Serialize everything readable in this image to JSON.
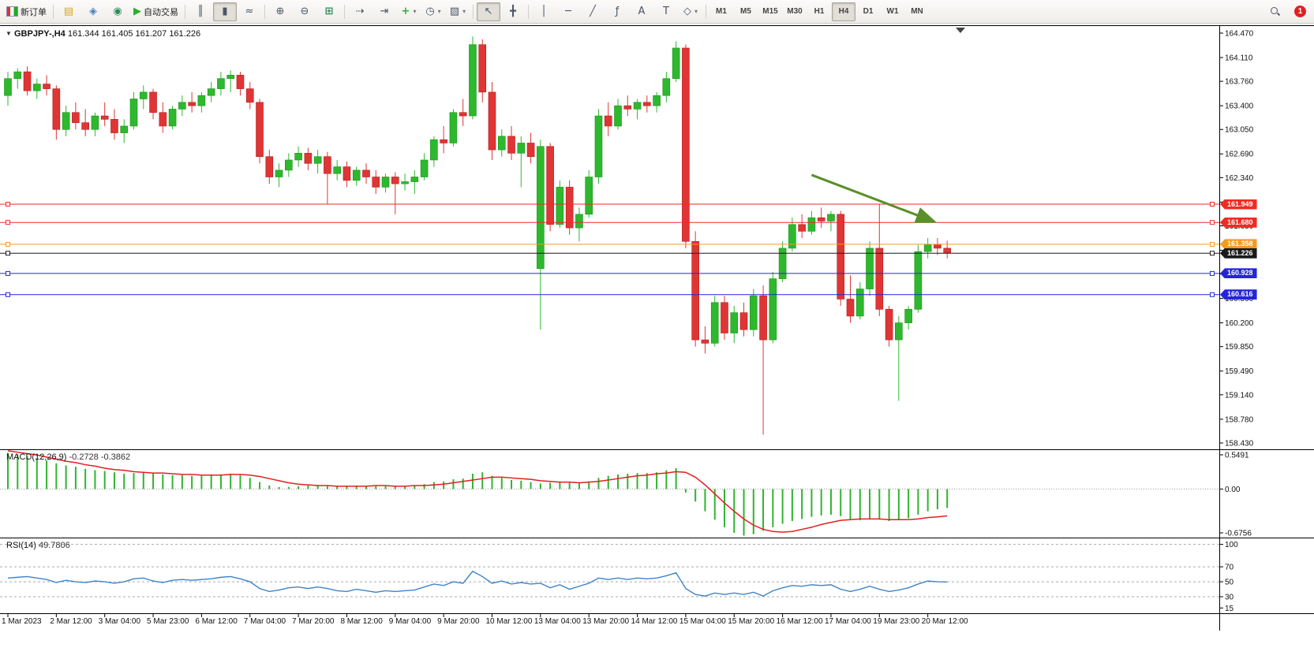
{
  "toolbar": {
    "notification_count": "1",
    "dropdown_glyph": "▾",
    "items": [
      {
        "name": "new-order-button",
        "label": "新订单",
        "icon": "new-order-icon"
      },
      {
        "sep": true
      },
      {
        "name": "market-watch-button",
        "glyph": "▤",
        "glyph_color": "#d9a520"
      },
      {
        "name": "navigator-button",
        "glyph": "◈",
        "glyph_color": "#4a7ebb"
      },
      {
        "name": "terminal-button",
        "glyph": "◉",
        "glyph_color": "#2e8b57"
      },
      {
        "name": "autotrading-button",
        "label": "自动交易",
        "glyph": "▶",
        "glyph_color": "#2eae2e"
      },
      {
        "sep": true
      },
      {
        "name": "bar-chart-button",
        "glyph": "║"
      },
      {
        "name": "candlestick-chart-button",
        "glyph": "▮",
        "active": true
      },
      {
        "name": "line-chart-button",
        "glyph": "≈"
      },
      {
        "sep": true
      },
      {
        "name": "zoom-in-button",
        "glyph": "⊕"
      },
      {
        "name": "zoom-out-button",
        "glyph": "⊖"
      },
      {
        "name": "tile-windows-button",
        "glyph": "⊞",
        "glyph_color": "#2e8b57"
      },
      {
        "sep": true
      },
      {
        "name": "auto-scroll-button",
        "glyph": "⇢"
      },
      {
        "name": "chart-shift-button",
        "glyph": "⇥"
      },
      {
        "name": "indicators-button",
        "glyph": "+",
        "glyph_color": "#2eae2e",
        "dropdown": true
      },
      {
        "name": "periods-button",
        "glyph": "◷",
        "dropdown": true
      },
      {
        "name": "templates-button",
        "glyph": "▨",
        "dropdown": true
      },
      {
        "sep": true
      },
      {
        "name": "cursor-button",
        "glyph": "↖",
        "active": true
      },
      {
        "name": "crosshair-button",
        "glyph": "╋"
      },
      {
        "sep": true
      },
      {
        "name": "vertical-line-button",
        "glyph": "│"
      },
      {
        "name": "horizontal-line-button",
        "glyph": "─"
      },
      {
        "name": "trendline-button",
        "glyph": "╱"
      },
      {
        "name": "fibonacci-button",
        "glyph": "ƒ"
      },
      {
        "name": "text-button",
        "glyph": "A"
      },
      {
        "name": "label-button",
        "glyph": "T"
      },
      {
        "name": "shapes-button",
        "glyph": "◇",
        "dropdown": true
      },
      {
        "sep": true
      },
      {
        "name": "tf-m1-button",
        "label": "M1",
        "tf": true
      },
      {
        "name": "tf-m5-button",
        "label": "M5",
        "tf": true
      },
      {
        "name": "tf-m15-button",
        "label": "M15",
        "tf": true
      },
      {
        "name": "tf-m30-button",
        "label": "M30",
        "tf": true
      },
      {
        "name": "tf-h1-button",
        "label": "H1",
        "tf": true
      },
      {
        "name": "tf-h4-button",
        "label": "H4",
        "tf": true,
        "active": true
      },
      {
        "name": "tf-d1-button",
        "label": "D1",
        "tf": true
      },
      {
        "name": "tf-w1-button",
        "label": "W1",
        "tf": true
      },
      {
        "name": "tf-mn-button",
        "label": "MN",
        "tf": true
      }
    ]
  },
  "chart": {
    "collapse_icon": "▼",
    "symbol_period": "GBPJPY-,H4",
    "ohlc": "161.344 161.405 161.207 161.226",
    "price_axis_ticks": [
      "164.470",
      "164.110",
      "163.760",
      "163.400",
      "163.050",
      "162.690",
      "162.340",
      "161.980",
      "161.630",
      "161.270",
      "160.920",
      "160.560",
      "160.200",
      "159.850",
      "159.490",
      "159.140",
      "158.780",
      "158.430"
    ],
    "time_axis_labels": [
      {
        "text": "1 Mar 2023",
        "bar": 0
      },
      {
        "text": "2 Mar 12:00",
        "bar": 5
      },
      {
        "text": "3 Mar 04:00",
        "bar": 10
      },
      {
        "text": "5 Mar 23:00",
        "bar": 15
      },
      {
        "text": "6 Mar 12:00",
        "bar": 20
      },
      {
        "text": "7 Mar 04:00",
        "bar": 25
      },
      {
        "text": "7 Mar 20:00",
        "bar": 30
      },
      {
        "text": "8 Mar 12:00",
        "bar": 35
      },
      {
        "text": "9 Mar 04:00",
        "bar": 40
      },
      {
        "text": "9 Mar 20:00",
        "bar": 45
      },
      {
        "text": "10 Mar 12:00",
        "bar": 50
      },
      {
        "text": "13 Mar 04:00",
        "bar": 55
      },
      {
        "text": "13 Mar 20:00",
        "bar": 60
      },
      {
        "text": "14 Mar 12:00",
        "bar": 65
      },
      {
        "text": "15 Mar 04:00",
        "bar": 70
      },
      {
        "text": "15 Mar 20:00",
        "bar": 75
      },
      {
        "text": "16 Mar 12:00",
        "bar": 80
      },
      {
        "text": "17 Mar 04:00",
        "bar": 85
      },
      {
        "text": "19 Mar 23:00",
        "bar": 90
      },
      {
        "text": "20 Mar 12:00",
        "bar": 95
      }
    ]
  },
  "macd": {
    "label": "MACD(12,26,9)",
    "values": "-0.2728 -0.3862",
    "axis": [
      "0.5491",
      "0.00",
      "-0.6756"
    ]
  },
  "rsi": {
    "label": "RSI(14)",
    "value": "49.7806",
    "axis": [
      "100",
      "70",
      "50",
      "30",
      "15"
    ],
    "levels": [
      100,
      70,
      50,
      30
    ]
  },
  "chart_data": {
    "type": "candlestick",
    "symbol": "GBPJPY",
    "timeframe": "H4",
    "price_range": [
      158.43,
      164.47
    ],
    "colors": {
      "bull": "#2eb82e",
      "bear": "#e03535",
      "macd_hist": "#30b430",
      "macd_signal": "#e02020",
      "rsi_line": "#3f84c9",
      "arrow": "#5a8f29"
    },
    "candles": [
      [
        163.55,
        163.9,
        163.4,
        163.8
      ],
      [
        163.8,
        163.95,
        163.65,
        163.9
      ],
      [
        163.9,
        163.98,
        163.55,
        163.62
      ],
      [
        163.62,
        163.8,
        163.5,
        163.72
      ],
      [
        163.72,
        163.85,
        163.55,
        163.65
      ],
      [
        163.65,
        163.7,
        162.9,
        163.05
      ],
      [
        163.05,
        163.4,
        162.95,
        163.3
      ],
      [
        163.3,
        163.45,
        163.05,
        163.15
      ],
      [
        163.15,
        163.35,
        162.95,
        163.05
      ],
      [
        163.05,
        163.3,
        162.95,
        163.25
      ],
      [
        163.25,
        163.45,
        163.1,
        163.2
      ],
      [
        163.2,
        163.35,
        162.9,
        163.0
      ],
      [
        163.0,
        163.2,
        162.85,
        163.1
      ],
      [
        163.1,
        163.6,
        163.05,
        163.5
      ],
      [
        163.5,
        163.7,
        163.35,
        163.6
      ],
      [
        163.6,
        163.65,
        163.2,
        163.3
      ],
      [
        163.3,
        163.45,
        163.0,
        163.1
      ],
      [
        163.1,
        163.4,
        163.05,
        163.35
      ],
      [
        163.35,
        163.55,
        163.25,
        163.45
      ],
      [
        163.45,
        163.6,
        163.3,
        163.4
      ],
      [
        163.4,
        163.6,
        163.3,
        163.55
      ],
      [
        163.55,
        163.75,
        163.45,
        163.65
      ],
      [
        163.65,
        163.9,
        163.55,
        163.8
      ],
      [
        163.8,
        163.92,
        163.6,
        163.85
      ],
      [
        163.85,
        163.9,
        163.55,
        163.65
      ],
      [
        163.65,
        163.75,
        163.35,
        163.45
      ],
      [
        163.45,
        163.5,
        162.55,
        162.65
      ],
      [
        162.65,
        162.75,
        162.25,
        162.35
      ],
      [
        162.35,
        162.55,
        162.2,
        162.45
      ],
      [
        162.45,
        162.7,
        162.35,
        162.6
      ],
      [
        162.6,
        162.8,
        162.5,
        162.7
      ],
      [
        162.7,
        162.78,
        162.45,
        162.55
      ],
      [
        162.55,
        162.75,
        162.4,
        162.65
      ],
      [
        162.65,
        162.72,
        161.95,
        162.4
      ],
      [
        162.4,
        162.6,
        162.3,
        162.5
      ],
      [
        162.5,
        162.58,
        162.2,
        162.3
      ],
      [
        162.3,
        162.5,
        162.22,
        162.45
      ],
      [
        162.45,
        162.55,
        162.25,
        162.35
      ],
      [
        162.35,
        162.45,
        162.1,
        162.2
      ],
      [
        162.2,
        162.4,
        162.12,
        162.35
      ],
      [
        162.35,
        162.42,
        161.8,
        162.25
      ],
      [
        162.25,
        162.4,
        162.15,
        162.28
      ],
      [
        162.28,
        162.45,
        162.1,
        162.35
      ],
      [
        162.35,
        162.7,
        162.3,
        162.6
      ],
      [
        162.6,
        162.95,
        162.5,
        162.9
      ],
      [
        162.9,
        163.1,
        162.7,
        162.85
      ],
      [
        162.85,
        163.35,
        162.8,
        163.3
      ],
      [
        163.3,
        163.5,
        163.1,
        163.25
      ],
      [
        163.25,
        164.42,
        163.2,
        164.3
      ],
      [
        164.3,
        164.38,
        163.45,
        163.6
      ],
      [
        163.6,
        163.75,
        162.6,
        162.75
      ],
      [
        162.75,
        163.05,
        162.65,
        162.95
      ],
      [
        162.95,
        163.1,
        162.6,
        162.7
      ],
      [
        162.7,
        162.95,
        162.2,
        162.85
      ],
      [
        162.85,
        163.0,
        162.55,
        162.65
      ],
      [
        161.0,
        162.9,
        160.1,
        162.8
      ],
      [
        162.8,
        162.85,
        161.55,
        161.65
      ],
      [
        161.65,
        162.3,
        161.6,
        162.2
      ],
      [
        162.2,
        162.3,
        161.5,
        161.6
      ],
      [
        161.6,
        161.9,
        161.4,
        161.8
      ],
      [
        161.8,
        162.45,
        161.75,
        162.35
      ],
      [
        162.35,
        163.35,
        162.25,
        163.25
      ],
      [
        163.25,
        163.45,
        162.95,
        163.1
      ],
      [
        163.1,
        163.5,
        163.05,
        163.4
      ],
      [
        163.4,
        163.55,
        163.25,
        163.35
      ],
      [
        163.35,
        163.5,
        163.2,
        163.45
      ],
      [
        163.45,
        163.55,
        163.3,
        163.4
      ],
      [
        163.4,
        163.6,
        163.3,
        163.55
      ],
      [
        163.55,
        163.9,
        163.45,
        163.8
      ],
      [
        163.8,
        164.35,
        163.75,
        164.25
      ],
      [
        164.25,
        164.3,
        161.3,
        161.4
      ],
      [
        161.4,
        161.55,
        159.85,
        159.95
      ],
      [
        159.95,
        160.15,
        159.75,
        159.9
      ],
      [
        159.9,
        160.6,
        159.85,
        160.5
      ],
      [
        160.5,
        160.6,
        159.95,
        160.05
      ],
      [
        160.05,
        160.45,
        159.9,
        160.35
      ],
      [
        160.35,
        160.5,
        160.0,
        160.1
      ],
      [
        160.1,
        160.7,
        160.0,
        160.6
      ],
      [
        160.6,
        160.75,
        158.55,
        159.95
      ],
      [
        159.95,
        160.95,
        159.9,
        160.85
      ],
      [
        160.85,
        161.4,
        160.8,
        161.3
      ],
      [
        161.3,
        161.75,
        161.25,
        161.65
      ],
      [
        161.65,
        161.8,
        161.45,
        161.55
      ],
      [
        161.55,
        161.85,
        161.5,
        161.75
      ],
      [
        161.75,
        161.9,
        161.6,
        161.7
      ],
      [
        161.7,
        161.85,
        161.55,
        161.8
      ],
      [
        161.8,
        161.85,
        160.45,
        160.55
      ],
      [
        160.55,
        160.9,
        160.2,
        160.3
      ],
      [
        160.3,
        160.8,
        160.25,
        160.7
      ],
      [
        160.7,
        161.4,
        160.6,
        161.3
      ],
      [
        161.3,
        161.95,
        160.3,
        160.4
      ],
      [
        160.4,
        160.45,
        159.85,
        159.95
      ],
      [
        159.95,
        160.3,
        159.05,
        160.2
      ],
      [
        160.2,
        160.45,
        160.1,
        160.4
      ],
      [
        160.4,
        161.35,
        160.35,
        161.25
      ],
      [
        161.25,
        161.45,
        161.15,
        161.35
      ],
      [
        161.35,
        161.45,
        161.2,
        161.3
      ],
      [
        161.3,
        161.41,
        161.15,
        161.23
      ]
    ],
    "hlines": [
      {
        "price": 161.949,
        "label": "161.949",
        "color": "#ef2b24"
      },
      {
        "price": 161.68,
        "label": "161.680",
        "color": "#ef2b24"
      },
      {
        "price": 161.358,
        "label": "161.358",
        "color": "#f59a21"
      },
      {
        "price": 161.226,
        "label": "161.226",
        "color": "#1a1a1a",
        "role": "bid"
      },
      {
        "price": 160.928,
        "label": "160.928",
        "color": "#2525d8"
      },
      {
        "price": 160.616,
        "label": "160.616",
        "color": "#2525d8"
      }
    ],
    "annotations": [
      {
        "type": "arrow",
        "from_bar": 83,
        "from_price": 162.38,
        "to_bar": 95.5,
        "to_price": 161.7,
        "color": "#5a8f29"
      }
    ],
    "indicators": {
      "macd": {
        "params": "12,26,9",
        "range": [
          -0.6756,
          0.5491
        ],
        "histogram": [
          0.52,
          0.5,
          0.47,
          0.44,
          0.41,
          0.37,
          0.34,
          0.32,
          0.29,
          0.27,
          0.26,
          0.24,
          0.22,
          0.23,
          0.24,
          0.23,
          0.21,
          0.2,
          0.2,
          0.19,
          0.19,
          0.2,
          0.21,
          0.22,
          0.2,
          0.16,
          0.1,
          0.05,
          0.03,
          0.03,
          0.04,
          0.05,
          0.05,
          0.04,
          0.04,
          0.04,
          0.05,
          0.05,
          0.04,
          0.04,
          0.04,
          0.04,
          0.05,
          0.07,
          0.1,
          0.11,
          0.14,
          0.15,
          0.22,
          0.24,
          0.19,
          0.16,
          0.13,
          0.12,
          0.1,
          0.08,
          0.09,
          0.1,
          0.09,
          0.09,
          0.11,
          0.16,
          0.19,
          0.21,
          0.22,
          0.23,
          0.23,
          0.24,
          0.27,
          0.3,
          -0.05,
          -0.18,
          -0.32,
          -0.44,
          -0.55,
          -0.63,
          -0.67,
          -0.65,
          -0.6,
          -0.55,
          -0.5,
          -0.46,
          -0.43,
          -0.4,
          -0.38,
          -0.37,
          -0.39,
          -0.43,
          -0.45,
          -0.43,
          -0.44,
          -0.46,
          -0.45,
          -0.42,
          -0.37,
          -0.32,
          -0.29,
          -0.2728
        ],
        "signal": [
          0.55,
          0.53,
          0.51,
          0.49,
          0.46,
          0.43,
          0.4,
          0.38,
          0.35,
          0.33,
          0.3,
          0.28,
          0.27,
          0.25,
          0.24,
          0.23,
          0.23,
          0.22,
          0.21,
          0.21,
          0.2,
          0.2,
          0.2,
          0.21,
          0.21,
          0.2,
          0.18,
          0.15,
          0.12,
          0.09,
          0.07,
          0.06,
          0.05,
          0.05,
          0.04,
          0.04,
          0.04,
          0.04,
          0.05,
          0.05,
          0.04,
          0.04,
          0.05,
          0.05,
          0.06,
          0.07,
          0.09,
          0.11,
          0.13,
          0.15,
          0.17,
          0.17,
          0.16,
          0.15,
          0.14,
          0.12,
          0.11,
          0.1,
          0.1,
          0.09,
          0.1,
          0.11,
          0.13,
          0.15,
          0.17,
          0.19,
          0.2,
          0.22,
          0.23,
          0.25,
          0.24,
          0.17,
          0.06,
          -0.07,
          -0.2,
          -0.32,
          -0.43,
          -0.52,
          -0.58,
          -0.61,
          -0.62,
          -0.61,
          -0.58,
          -0.55,
          -0.51,
          -0.48,
          -0.45,
          -0.44,
          -0.43,
          -0.43,
          -0.43,
          -0.44,
          -0.44,
          -0.44,
          -0.43,
          -0.41,
          -0.4,
          -0.3862
        ]
      },
      "rsi": {
        "params": "14",
        "values": [
          55,
          56,
          57,
          55,
          53,
          49,
          52,
          50,
          49,
          51,
          50,
          48,
          50,
          54,
          55,
          51,
          49,
          52,
          53,
          52,
          53,
          54,
          56,
          57,
          54,
          50,
          41,
          37,
          39,
          42,
          43,
          41,
          43,
          41,
          38,
          37,
          40,
          38,
          36,
          38,
          37,
          38,
          39,
          43,
          47,
          45,
          50,
          48,
          64,
          57,
          48,
          51,
          47,
          49,
          47,
          48,
          42,
          46,
          40,
          44,
          48,
          55,
          53,
          55,
          53,
          55,
          54,
          55,
          58,
          62,
          41,
          33,
          31,
          35,
          33,
          35,
          33,
          36,
          31,
          38,
          42,
          45,
          44,
          46,
          45,
          46,
          40,
          37,
          40,
          44,
          40,
          37,
          39,
          42,
          47,
          51,
          50,
          49.78
        ]
      }
    }
  }
}
